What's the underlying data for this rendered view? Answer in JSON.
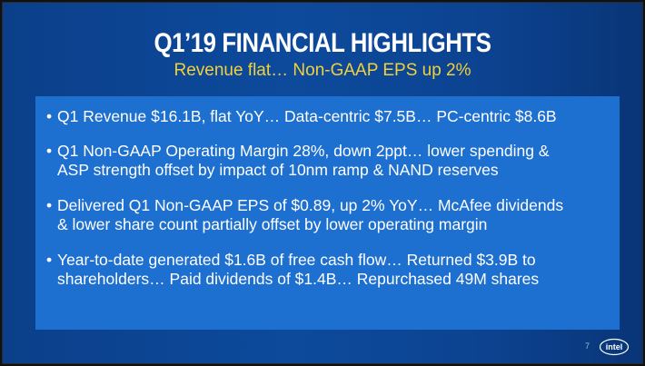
{
  "slide": {
    "title": "Q1’19 FINANCIAL HIGHLIGHTS",
    "subtitle": "Revenue flat… Non-GAAP EPS up 2%",
    "bullets": [
      {
        "marker": "•",
        "lines": [
          "Q1 Revenue $16.1B, flat YoY… Data-centric $7.5B… PC-centric $8.6B"
        ]
      },
      {
        "marker": "•",
        "lines": [
          "Q1 Non-GAAP Operating Margin 28%, down 2ppt… lower spending &",
          "ASP strength offset by impact of 10nm ramp & NAND reserves"
        ]
      },
      {
        "marker": "•",
        "lines": [
          "Delivered Q1 Non-GAAP EPS of $0.89, up 2% YoY… McAfee dividends",
          "& lower share count partially offset by lower operating margin"
        ]
      },
      {
        "marker": "•",
        "lines": [
          "Year-to-date generated $1.6B of free cash flow… Returned $3.9B to",
          "shareholders… Paid dividends of $1.4B… Repurchased 49M shares"
        ]
      }
    ],
    "page_number": "7",
    "logo_text": "intel"
  },
  "colors": {
    "background": "#0d4a9c",
    "panel": "#1d6fd0",
    "title": "#ffffff",
    "subtitle": "#f1d13a"
  }
}
